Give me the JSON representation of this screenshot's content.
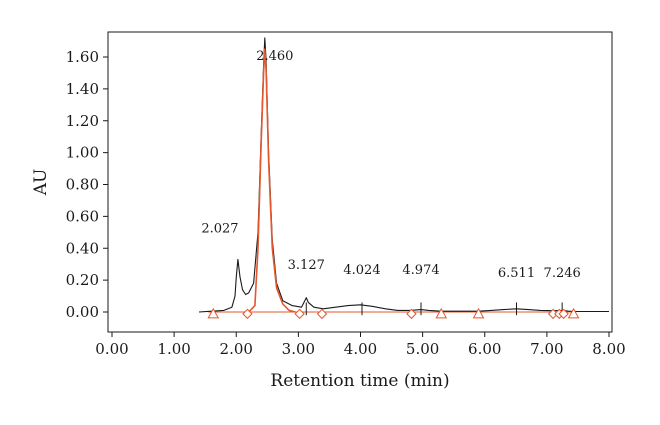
{
  "chart_data": {
    "type": "line",
    "title": "",
    "xlabel": "Retention time (min)",
    "ylabel": "AU",
    "xlim": [
      0,
      8
    ],
    "ylim": [
      -0.08,
      1.72
    ],
    "x_ticks": [
      "0.00",
      "1.00",
      "2.00",
      "3.00",
      "4.00",
      "5.00",
      "6.00",
      "7.00",
      "8.00"
    ],
    "y_ticks": [
      "0.00",
      "0.20",
      "0.40",
      "0.60",
      "0.80",
      "1.00",
      "1.20",
      "1.40",
      "1.60"
    ],
    "grid": false,
    "legend": "none",
    "series": [
      {
        "color": "#1a1a1a",
        "points": [
          [
            1.4,
            0.0
          ],
          [
            1.6,
            0.005
          ],
          [
            1.8,
            0.01
          ],
          [
            1.93,
            0.03
          ],
          [
            1.98,
            0.1
          ],
          [
            2.0,
            0.22
          ],
          [
            2.027,
            0.33
          ],
          [
            2.06,
            0.22
          ],
          [
            2.1,
            0.14
          ],
          [
            2.15,
            0.11
          ],
          [
            2.2,
            0.12
          ],
          [
            2.28,
            0.18
          ],
          [
            2.35,
            0.5
          ],
          [
            2.4,
            1.1
          ],
          [
            2.44,
            1.55
          ],
          [
            2.46,
            1.72
          ],
          [
            2.48,
            1.58
          ],
          [
            2.52,
            1.0
          ],
          [
            2.58,
            0.45
          ],
          [
            2.65,
            0.18
          ],
          [
            2.75,
            0.07
          ],
          [
            2.9,
            0.04
          ],
          [
            3.05,
            0.03
          ],
          [
            3.127,
            0.09
          ],
          [
            3.16,
            0.06
          ],
          [
            3.25,
            0.03
          ],
          [
            3.4,
            0.02
          ],
          [
            3.6,
            0.03
          ],
          [
            3.8,
            0.04
          ],
          [
            4.0,
            0.045
          ],
          [
            4.2,
            0.035
          ],
          [
            4.4,
            0.02
          ],
          [
            4.6,
            0.01
          ],
          [
            4.8,
            0.01
          ],
          [
            4.974,
            0.015
          ],
          [
            5.1,
            0.01
          ],
          [
            5.3,
            0.005
          ],
          [
            5.6,
            0.005
          ],
          [
            5.9,
            0.005
          ],
          [
            6.1,
            0.01
          ],
          [
            6.3,
            0.015
          ],
          [
            6.511,
            0.02
          ],
          [
            6.7,
            0.015
          ],
          [
            6.9,
            0.01
          ],
          [
            7.1,
            0.008
          ],
          [
            7.246,
            0.01
          ],
          [
            7.35,
            0.005
          ],
          [
            7.5,
            0.003
          ],
          [
            8.0,
            0.003
          ]
        ]
      },
      {
        "color": "#e4572e",
        "points": [
          [
            2.2,
            0.0
          ],
          [
            2.3,
            0.04
          ],
          [
            2.35,
            0.4
          ],
          [
            2.4,
            1.05
          ],
          [
            2.44,
            1.5
          ],
          [
            2.46,
            1.65
          ],
          [
            2.48,
            1.52
          ],
          [
            2.52,
            0.95
          ],
          [
            2.58,
            0.4
          ],
          [
            2.65,
            0.15
          ],
          [
            2.75,
            0.05
          ],
          [
            2.85,
            0.01
          ],
          [
            2.95,
            0.0
          ]
        ]
      }
    ],
    "baseline": {
      "color": "#e4572e",
      "from": 1.55,
      "to": 7.45,
      "value": 0.0
    },
    "peak_labels": [
      {
        "text": "2.460",
        "x": 2.46,
        "y": 1.58
      },
      {
        "text": "2.027",
        "x": 2.027,
        "y": 0.5
      },
      {
        "text": "3.127",
        "x": 3.127,
        "y": 0.27
      },
      {
        "text": "4.024",
        "x": 4.024,
        "y": 0.24
      },
      {
        "text": "4.974",
        "x": 4.974,
        "y": 0.24
      },
      {
        "text": "6.511",
        "x": 6.511,
        "y": 0.22
      },
      {
        "text": "7.246",
        "x": 7.246,
        "y": 0.22
      }
    ],
    "peak_ticks": [
      3.127,
      4.024,
      4.974,
      6.511,
      7.246
    ],
    "markers": [
      {
        "shape": "triangle",
        "x": 1.63
      },
      {
        "shape": "diamond",
        "x": 2.18
      },
      {
        "shape": "diamond",
        "x": 3.02
      },
      {
        "shape": "diamond",
        "x": 3.38
      },
      {
        "shape": "diamond",
        "x": 4.82
      },
      {
        "shape": "triangle",
        "x": 5.3
      },
      {
        "shape": "triangle",
        "x": 5.9
      },
      {
        "shape": "diamond",
        "x": 7.1
      },
      {
        "shape": "diamond",
        "x": 7.2
      },
      {
        "shape": "diamond",
        "x": 7.27
      },
      {
        "shape": "triangle",
        "x": 7.43
      }
    ],
    "marker_color": "#e4572e"
  }
}
